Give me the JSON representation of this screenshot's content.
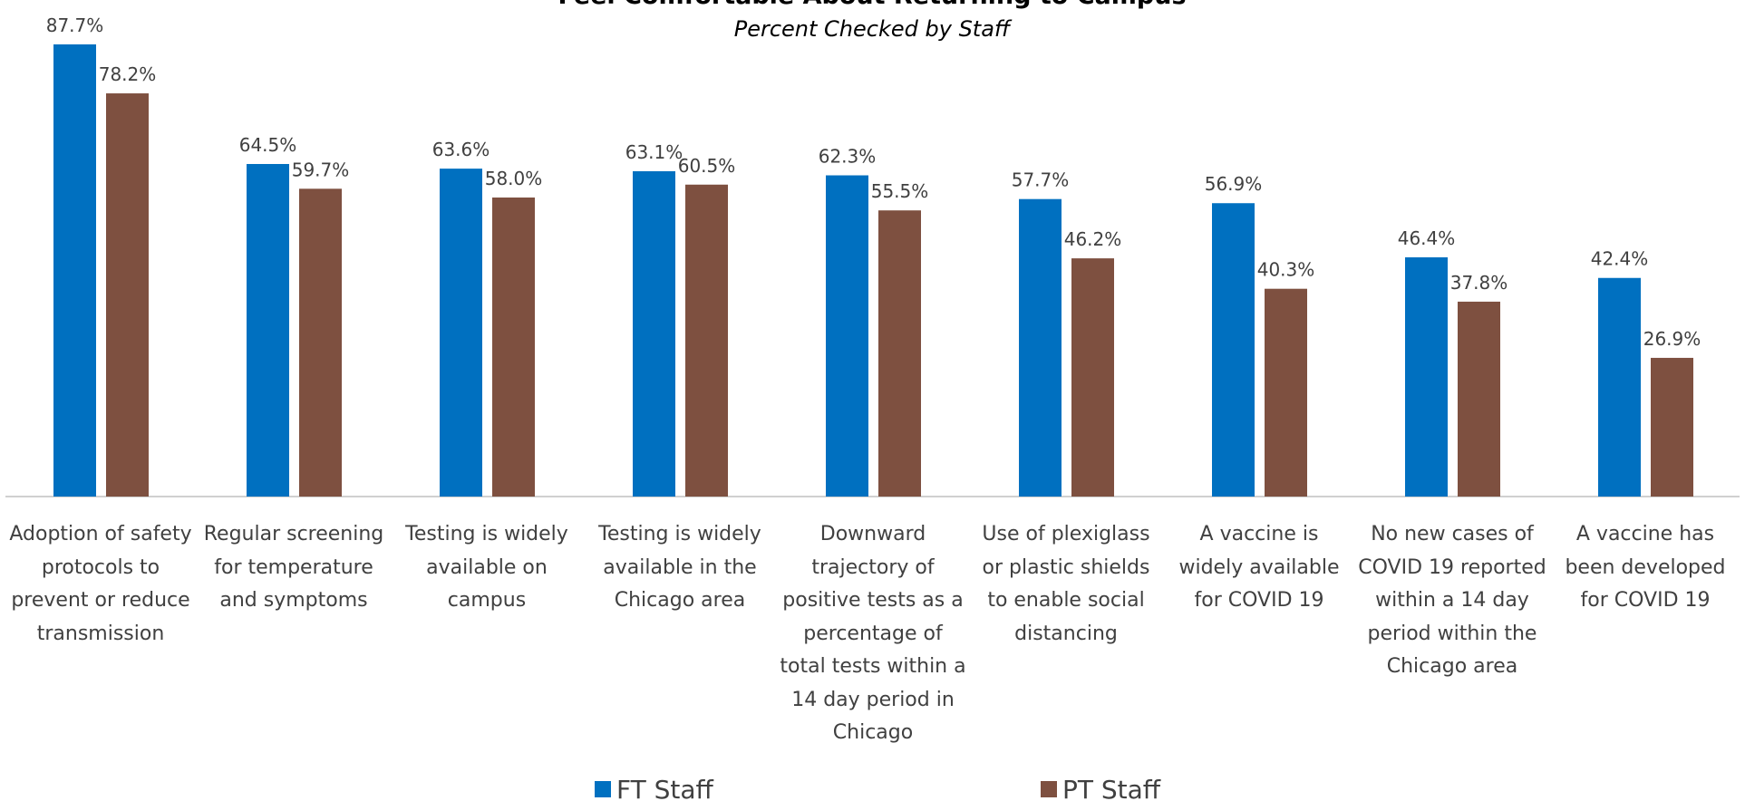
{
  "chart_data": {
    "type": "bar",
    "title": "Feel Comfortable About Returning to Campus",
    "subtitle": "Percent Checked by Staff",
    "categories": [
      "Adoption of safety protocols to prevent or reduce transmission",
      "Regular screening for temperature and symptoms",
      "Testing is widely available on campus",
      "Testing is widely available in the Chicago area",
      "Downward trajectory of positive tests as a percentage of total tests within a 14 day period in Chicago",
      "Use of plexiglass or plastic shields to enable social distancing",
      "A vaccine is widely available for COVID 19",
      "No new cases of COVID 19 reported within a 14 day period within the Chicago area",
      "A vaccine has been developed for COVID 19"
    ],
    "series": [
      {
        "name": "FT Staff",
        "color": "#0070c0",
        "values": [
          87.7,
          64.5,
          63.6,
          63.1,
          62.3,
          57.7,
          56.9,
          46.4,
          42.4
        ],
        "value_labels": [
          "87.7%",
          "64.5%",
          "63.6%",
          "63.1%",
          "62.3%",
          "57.7%",
          "56.9%",
          "46.4%",
          "42.4%"
        ]
      },
      {
        "name": "PT Staff",
        "color": "#7e5040",
        "values": [
          78.2,
          59.7,
          58.0,
          60.5,
          55.5,
          46.2,
          40.3,
          37.8,
          26.9
        ],
        "value_labels": [
          "78.2%",
          "59.7%",
          "58.0%",
          "60.5%",
          "55.5%",
          "46.2%",
          "40.3%",
          "37.8%",
          "26.9%"
        ]
      }
    ],
    "legend": "bottom"
  }
}
